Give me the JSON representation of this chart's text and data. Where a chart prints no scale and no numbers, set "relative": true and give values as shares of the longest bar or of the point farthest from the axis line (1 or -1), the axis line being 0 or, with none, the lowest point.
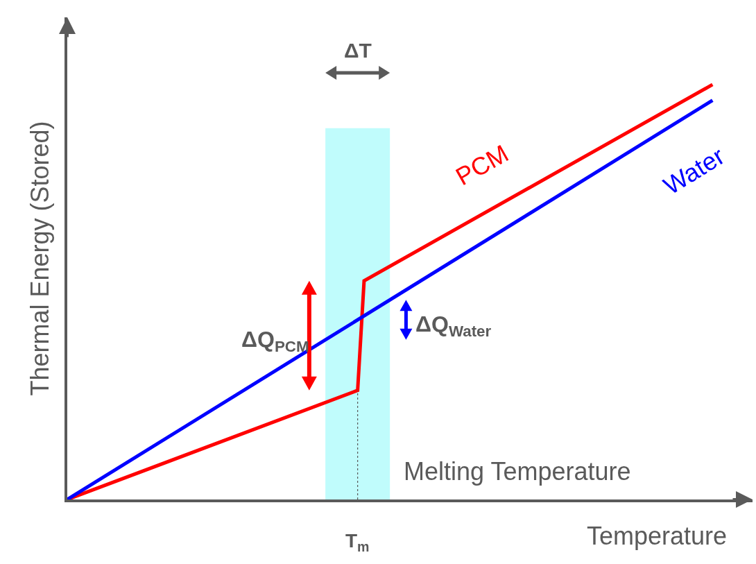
{
  "chart_data": {
    "type": "line",
    "relative": true,
    "xlabel": "Temperature",
    "ylabel": "Thermal Energy (Stored)",
    "categories": [
      null,
      null,
      null,
      null,
      null,
      null,
      null,
      null,
      null,
      null,
      null,
      null,
      null,
      null,
      null,
      null,
      null,
      null,
      null,
      null,
      null,
      null,
      null,
      null,
      null,
      null,
      null,
      null,
      null,
      null,
      null,
      null,
      null,
      null,
      null,
      null,
      null,
      null,
      null,
      null,
      null,
      null,
      null,
      null,
      null,
      null,
      null,
      null,
      null,
      null,
      null,
      null,
      null,
      null,
      null,
      null,
      null,
      null,
      null,
      null,
      null,
      null,
      null,
      null,
      null,
      null,
      null,
      null,
      null,
      null,
      null,
      null,
      null,
      null,
      null,
      null,
      null,
      null,
      null,
      null,
      null,
      null,
      null,
      null,
      null,
      null,
      null,
      null,
      null,
      null,
      null,
      null,
      null,
      null,
      null,
      null,
      null,
      null,
      null,
      null,
      null
    ],
    "series": [
      {
        "name": "PCM",
        "color": "#ff0000",
        "values": [
          0,
          null,
          null,
          null,
          null,
          null,
          null,
          null,
          null,
          null,
          null,
          null,
          null,
          null,
          null,
          null,
          null,
          null,
          null,
          null,
          null,
          null,
          null,
          null,
          null,
          null,
          null,
          null,
          null,
          null,
          null,
          null,
          null,
          null,
          null,
          null,
          null,
          null,
          null,
          null,
          null,
          null,
          null,
          null,
          null,
          0.263,
          0.527,
          null,
          null,
          null,
          null,
          null,
          null,
          null,
          null,
          null,
          null,
          null,
          null,
          null,
          null,
          null,
          null,
          null,
          null,
          null,
          null,
          null,
          null,
          null,
          null,
          null,
          null,
          null,
          null,
          null,
          null,
          null,
          null,
          null,
          null,
          null,
          null,
          null,
          null,
          null,
          null,
          null,
          null,
          null,
          null,
          null,
          null,
          null,
          null,
          null,
          null,
          null,
          null,
          null,
          1
        ]
      },
      {
        "name": "Water",
        "color": "#0000ff",
        "values": [
          0,
          null,
          null,
          null,
          null,
          null,
          null,
          null,
          null,
          null,
          null,
          null,
          null,
          null,
          null,
          null,
          null,
          null,
          null,
          null,
          null,
          null,
          null,
          null,
          null,
          null,
          null,
          null,
          null,
          null,
          null,
          null,
          null,
          null,
          null,
          null,
          null,
          null,
          null,
          null,
          null,
          null,
          null,
          null,
          null,
          null,
          null,
          null,
          null,
          null,
          null,
          null,
          null,
          null,
          null,
          null,
          null,
          null,
          null,
          null,
          null,
          null,
          null,
          null,
          null,
          null,
          null,
          null,
          null,
          null,
          null,
          null,
          null,
          null,
          null,
          null,
          null,
          null,
          null,
          null,
          null,
          null,
          null,
          null,
          null,
          null,
          null,
          null,
          null,
          null,
          null,
          null,
          null,
          null,
          null,
          null,
          null,
          null,
          null,
          null,
          0.962
        ]
      }
    ],
    "annotations": [
      "ΔT",
      "ΔQ$_{PCM}$",
      "ΔQ$_{Water}$",
      "Melting Temperature",
      "T$_{m}$"
    ],
    "grid": false,
    "legend": false,
    "tick_labels": false,
    "marker": "none",
    "line_style": "solid"
  }
}
